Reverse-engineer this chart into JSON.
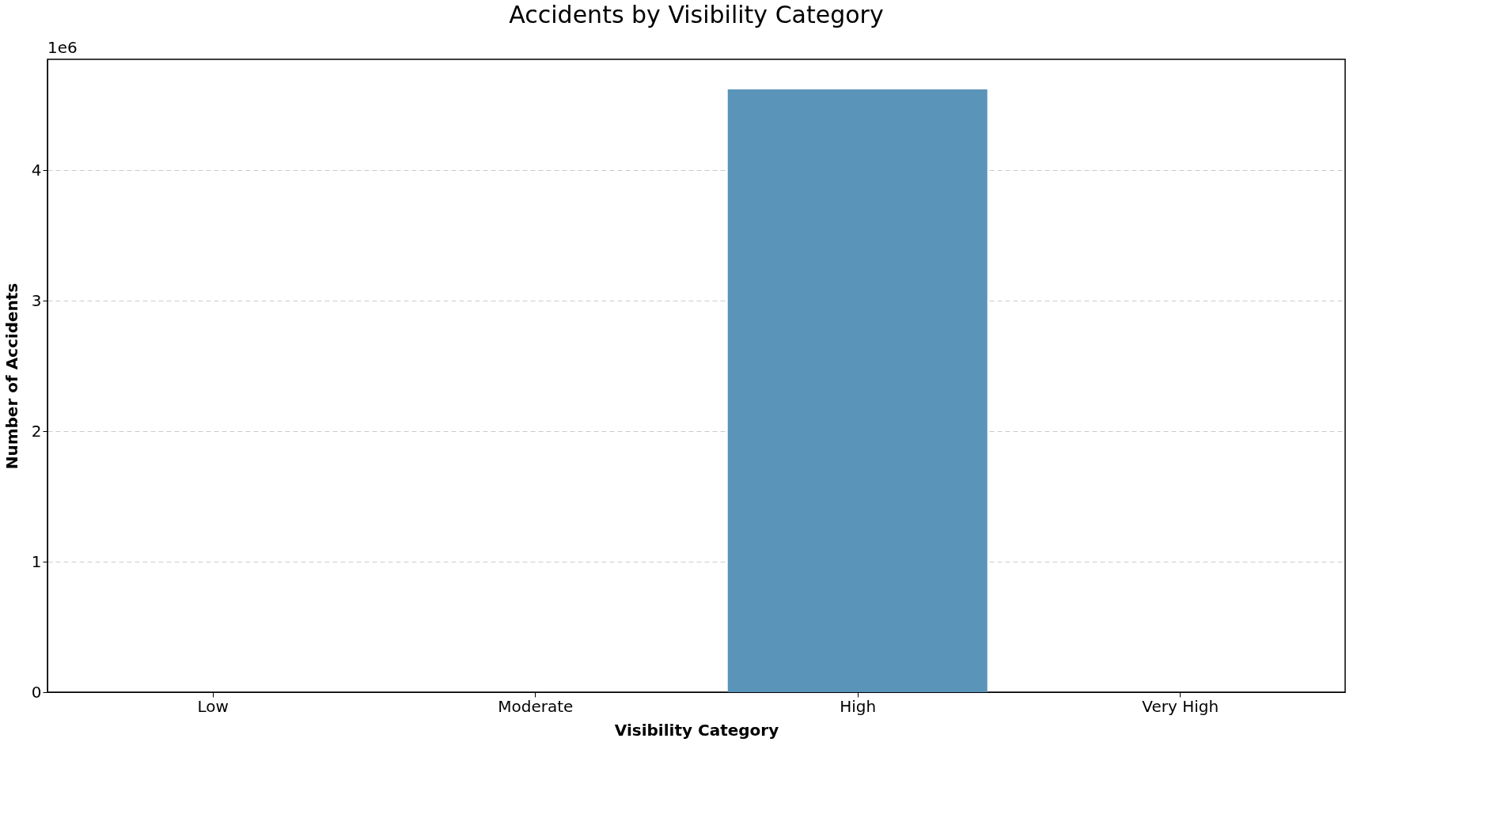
{
  "chart_data": {
    "type": "bar",
    "title": "Accidents by Visibility Category",
    "xlabel": "Visibility Category",
    "ylabel": "Number of Accidents",
    "categories": [
      "Low",
      "Moderate",
      "High",
      "Very High"
    ],
    "values": [
      0,
      0,
      4.62,
      0
    ],
    "color": "#5b94b9",
    "ylim": [
      0,
      4.85
    ],
    "yticks": [
      0,
      1,
      2,
      3,
      4
    ],
    "grid": "y",
    "annotations": [
      "1e6"
    ]
  }
}
